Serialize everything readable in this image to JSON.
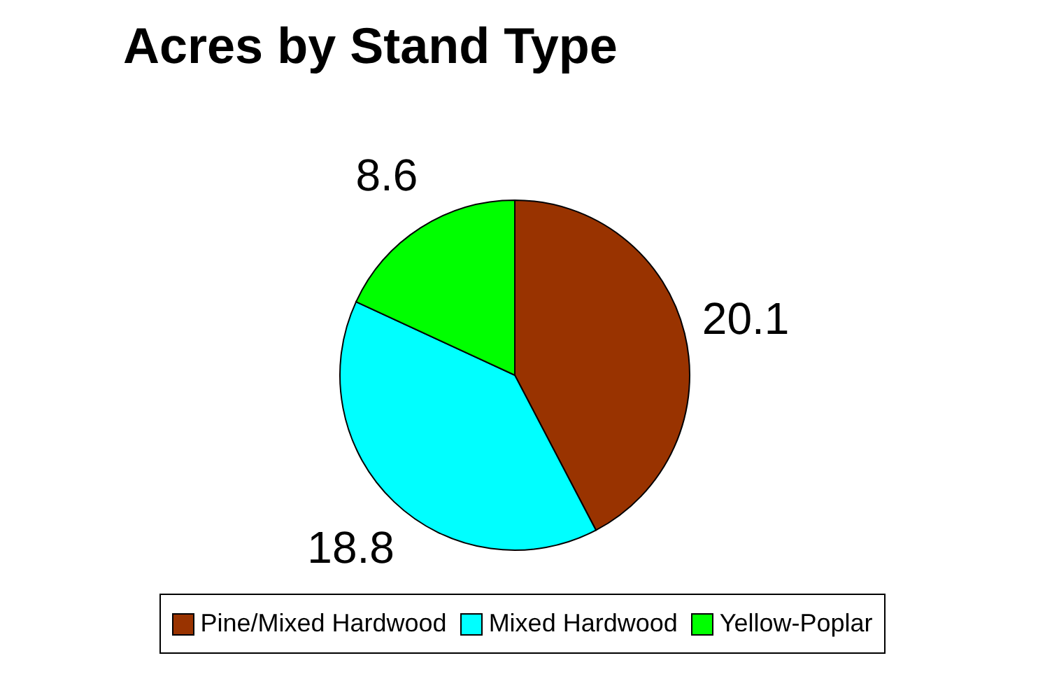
{
  "chart_data": {
    "type": "pie",
    "title": "Acres by Stand Type",
    "categories": [
      "Pine/Mixed Hardwood",
      "Mixed Hardwood",
      "Yellow-Poplar"
    ],
    "values": [
      20.1,
      18.8,
      8.6
    ],
    "colors": [
      "#993300",
      "#00ffff",
      "#00ff00"
    ],
    "data_labels": true,
    "legend": "bottom"
  }
}
